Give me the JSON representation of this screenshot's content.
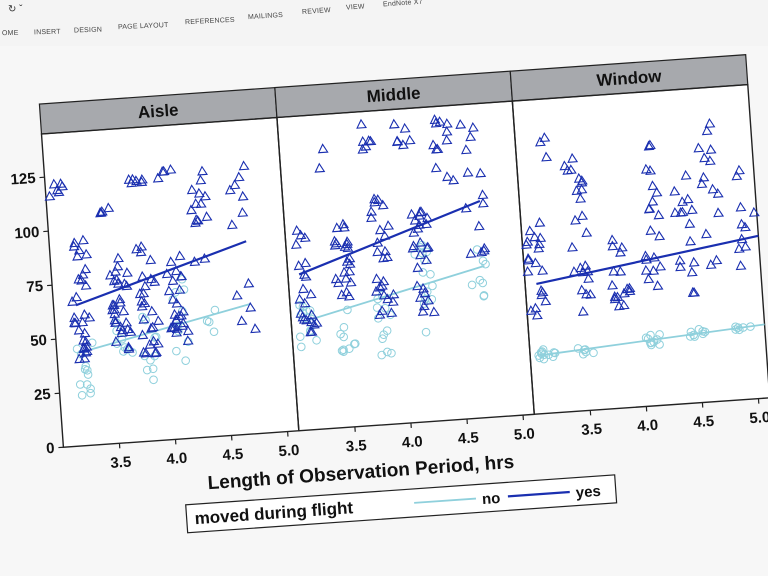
{
  "ribbon": {
    "quick_access": "↻ ˇ",
    "tabs": [
      "OME",
      "INSERT",
      "DESIGN",
      "PAGE LAYOUT",
      "REFERENCES",
      "MAILINGS",
      "REVIEW",
      "VIEW",
      "EndNote X7"
    ]
  },
  "colors": {
    "no": "#8fd0dc",
    "yes": "#1a2fb0",
    "header_bg": "#a7a9ad"
  },
  "chart_data": {
    "type": "scatter",
    "title": "",
    "xlabel": "Length of Observation Period, hrs",
    "ylabel": "",
    "xlim": [
      3.0,
      5.1
    ],
    "ylim": [
      0,
      145
    ],
    "panels": [
      "Aisle",
      "Middle",
      "Window"
    ],
    "x_ticks": [
      {
        "value": 3.5,
        "label": "3.5"
      },
      {
        "value": 4.0,
        "label": "4.0"
      },
      {
        "value": 4.5,
        "label": "4.5"
      },
      {
        "value": 5.0,
        "label": "5.0"
      }
    ],
    "y_ticks": [
      {
        "value": 0,
        "label": "0"
      },
      {
        "value": 25,
        "label": "25"
      },
      {
        "value": 50,
        "label": "50"
      },
      {
        "value": 75,
        "label": "75"
      },
      {
        "value": 100,
        "label": "100"
      },
      {
        "value": 125,
        "label": "125"
      }
    ],
    "legend": {
      "title": "moved during flight",
      "placement": "bottom",
      "entries": [
        "no",
        "yes"
      ]
    },
    "series": [
      {
        "name": "no",
        "marker": "circle",
        "fit": {
          "Aisle": [
            [
              3.2,
              43
            ],
            [
              4.75,
              60
            ]
          ],
          "Middle": [
            [
              3.1,
              50
            ],
            [
              4.75,
              70
            ]
          ],
          "Window": [
            [
              3.1,
              27
            ],
            [
              5.1,
              34
            ]
          ]
        },
        "clusters": [
          {
            "panel": "Aisle",
            "x": 3.25,
            "y_min": 22,
            "y_max": 48,
            "n": 12
          },
          {
            "panel": "Aisle",
            "x": 3.6,
            "y_min": 38,
            "y_max": 56,
            "n": 8
          },
          {
            "panel": "Aisle",
            "x": 3.85,
            "y_min": 25,
            "y_max": 60,
            "n": 10
          },
          {
            "panel": "Aisle",
            "x": 4.1,
            "y_min": 30,
            "y_max": 75,
            "n": 10
          },
          {
            "panel": "Aisle",
            "x": 4.4,
            "y_min": 48,
            "y_max": 62,
            "n": 4
          },
          {
            "panel": "Middle",
            "x": 3.15,
            "y_min": 35,
            "y_max": 58,
            "n": 12
          },
          {
            "panel": "Middle",
            "x": 3.5,
            "y_min": 35,
            "y_max": 58,
            "n": 10
          },
          {
            "panel": "Middle",
            "x": 3.85,
            "y_min": 30,
            "y_max": 62,
            "n": 12
          },
          {
            "panel": "Middle",
            "x": 4.2,
            "y_min": 38,
            "y_max": 82,
            "n": 14
          },
          {
            "panel": "Middle",
            "x": 4.7,
            "y_min": 52,
            "y_max": 78,
            "n": 8
          },
          {
            "panel": "Window",
            "x": 3.15,
            "y_min": 25,
            "y_max": 30,
            "n": 12
          },
          {
            "panel": "Window",
            "x": 3.5,
            "y_min": 26,
            "y_max": 30,
            "n": 6
          },
          {
            "panel": "Window",
            "x": 4.1,
            "y_min": 28,
            "y_max": 33,
            "n": 10
          },
          {
            "panel": "Window",
            "x": 4.5,
            "y_min": 30,
            "y_max": 34,
            "n": 8
          },
          {
            "panel": "Window",
            "x": 4.9,
            "y_min": 31,
            "y_max": 35,
            "n": 6
          }
        ]
      },
      {
        "name": "yes",
        "marker": "triangle",
        "fit": {
          "Aisle": [
            [
              3.2,
              65
            ],
            [
              4.75,
              89
            ]
          ],
          "Middle": [
            [
              3.1,
              72
            ],
            [
              4.75,
              100
            ]
          ],
          "Window": [
            [
              3.1,
              60
            ],
            [
              5.1,
              75
            ]
          ]
        },
        "clusters": [
          {
            "panel": "Aisle",
            "x": 3.1,
            "y_min": 115,
            "y_max": 122,
            "n": 6
          },
          {
            "panel": "Aisle",
            "x": 3.25,
            "y_min": 40,
            "y_max": 95,
            "n": 30
          },
          {
            "panel": "Aisle",
            "x": 3.55,
            "y_min": 105,
            "y_max": 112,
            "n": 4
          },
          {
            "panel": "Aisle",
            "x": 3.6,
            "y_min": 40,
            "y_max": 88,
            "n": 30
          },
          {
            "panel": "Aisle",
            "x": 3.8,
            "y_min": 118,
            "y_max": 122,
            "n": 6
          },
          {
            "panel": "Aisle",
            "x": 3.85,
            "y_min": 40,
            "y_max": 90,
            "n": 26
          },
          {
            "panel": "Aisle",
            "x": 4.05,
            "y_min": 120,
            "y_max": 125,
            "n": 4
          },
          {
            "panel": "Aisle",
            "x": 4.1,
            "y_min": 45,
            "y_max": 85,
            "n": 26
          },
          {
            "panel": "Aisle",
            "x": 4.35,
            "y_min": 75,
            "y_max": 125,
            "n": 14
          },
          {
            "panel": "Aisle",
            "x": 4.7,
            "y_min": 48,
            "y_max": 125,
            "n": 12
          },
          {
            "panel": "Middle",
            "x": 3.15,
            "y_min": 45,
            "y_max": 95,
            "n": 22
          },
          {
            "panel": "Middle",
            "x": 3.4,
            "y_min": 118,
            "y_max": 130,
            "n": 2
          },
          {
            "panel": "Middle",
            "x": 3.5,
            "y_min": 55,
            "y_max": 95,
            "n": 22
          },
          {
            "panel": "Middle",
            "x": 3.75,
            "y_min": 125,
            "y_max": 140,
            "n": 6
          },
          {
            "panel": "Middle",
            "x": 3.85,
            "y_min": 50,
            "y_max": 105,
            "n": 26
          },
          {
            "panel": "Middle",
            "x": 4.1,
            "y_min": 125,
            "y_max": 140,
            "n": 6
          },
          {
            "panel": "Middle",
            "x": 4.2,
            "y_min": 50,
            "y_max": 100,
            "n": 26
          },
          {
            "panel": "Middle",
            "x": 4.45,
            "y_min": 110,
            "y_max": 140,
            "n": 12
          },
          {
            "panel": "Middle",
            "x": 4.7,
            "y_min": 75,
            "y_max": 140,
            "n": 14
          },
          {
            "panel": "Window",
            "x": 3.1,
            "y_min": 45,
            "y_max": 90,
            "n": 20
          },
          {
            "panel": "Window",
            "x": 3.3,
            "y_min": 115,
            "y_max": 130,
            "n": 3
          },
          {
            "panel": "Window",
            "x": 3.5,
            "y_min": 45,
            "y_max": 125,
            "n": 24
          },
          {
            "panel": "Window",
            "x": 3.85,
            "y_min": 45,
            "y_max": 80,
            "n": 16
          },
          {
            "panel": "Window",
            "x": 4.15,
            "y_min": 55,
            "y_max": 125,
            "n": 20
          },
          {
            "panel": "Window",
            "x": 4.45,
            "y_min": 50,
            "y_max": 110,
            "n": 16
          },
          {
            "panel": "Window",
            "x": 4.7,
            "y_min": 55,
            "y_max": 130,
            "n": 14
          },
          {
            "panel": "Window",
            "x": 5.0,
            "y_min": 60,
            "y_max": 110,
            "n": 10
          }
        ]
      }
    ]
  }
}
